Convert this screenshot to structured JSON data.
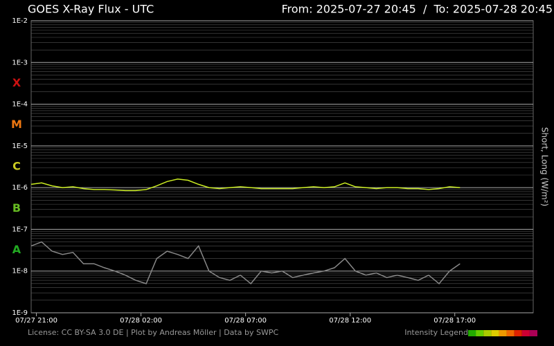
{
  "chart_data": {
    "type": "line",
    "title": "GOES X-Ray Flux - UTC",
    "subtitle": "From: 2025-07-27 20:45  /  To: 2025-07-28 20:45",
    "ylabel": "Short, Long (W/m²)",
    "log_y": true,
    "grid": true,
    "minor_grid": true,
    "ylim": [
      1e-09,
      0.01
    ],
    "yticks": [
      {
        "value": 1e-09,
        "label": "1E-9"
      },
      {
        "value": 1e-08,
        "label": "1E-8"
      },
      {
        "value": 1e-07,
        "label": "1E-7"
      },
      {
        "value": 1e-06,
        "label": "1E-6"
      },
      {
        "value": 1e-05,
        "label": "1E-5"
      },
      {
        "value": 0.0001,
        "label": "1E-4"
      },
      {
        "value": 0.001,
        "label": "1E-3"
      },
      {
        "value": 0.01,
        "label": "1E-2"
      }
    ],
    "xlim": [
      "2025-07-27T20:45",
      "2025-07-28T20:45"
    ],
    "xticks": [
      {
        "value": "2025-07-27T21:00",
        "label": "07/27 21:00"
      },
      {
        "value": "2025-07-28T02:00",
        "label": "07/28 02:00"
      },
      {
        "value": "2025-07-28T07:00",
        "label": "07/28 07:00"
      },
      {
        "value": "2025-07-28T12:00",
        "label": "07/28 12:00"
      },
      {
        "value": "2025-07-28T17:00",
        "label": "07/28 17:00"
      }
    ],
    "flare_classes": [
      {
        "label": "A",
        "color": "#22aa22"
      },
      {
        "label": "B",
        "color": "#66bb22"
      },
      {
        "label": "C",
        "color": "#cccc22"
      },
      {
        "label": "M",
        "color": "#ee7711"
      },
      {
        "label": "X",
        "color": "#cc1111"
      }
    ],
    "x": [
      "2025-07-27T20:45",
      "2025-07-27T21:15",
      "2025-07-27T21:45",
      "2025-07-27T22:15",
      "2025-07-27T22:45",
      "2025-07-27T23:15",
      "2025-07-27T23:45",
      "2025-07-28T00:15",
      "2025-07-28T00:45",
      "2025-07-28T01:15",
      "2025-07-28T01:45",
      "2025-07-28T02:15",
      "2025-07-28T02:45",
      "2025-07-28T03:15",
      "2025-07-28T03:45",
      "2025-07-28T04:15",
      "2025-07-28T04:45",
      "2025-07-28T05:15",
      "2025-07-28T05:45",
      "2025-07-28T06:15",
      "2025-07-28T06:45",
      "2025-07-28T07:15",
      "2025-07-28T07:45",
      "2025-07-28T08:15",
      "2025-07-28T08:45",
      "2025-07-28T09:15",
      "2025-07-28T09:45",
      "2025-07-28T10:15",
      "2025-07-28T10:45",
      "2025-07-28T11:15",
      "2025-07-28T11:45",
      "2025-07-28T12:15",
      "2025-07-28T12:45",
      "2025-07-28T13:15",
      "2025-07-28T13:45",
      "2025-07-28T14:15",
      "2025-07-28T14:45",
      "2025-07-28T15:15",
      "2025-07-28T15:45",
      "2025-07-28T16:15",
      "2025-07-28T16:45",
      "2025-07-28T17:15"
    ],
    "series": [
      {
        "name": "Long",
        "color": "#ccee22",
        "values": [
          1.2e-06,
          1.3e-06,
          1.1e-06,
          1e-06,
          1.05e-06,
          9.5e-07,
          9e-07,
          9e-07,
          8.8e-07,
          8.5e-07,
          8.5e-07,
          9e-07,
          1.1e-06,
          1.4e-06,
          1.6e-06,
          1.5e-06,
          1.2e-06,
          1e-06,
          9.5e-07,
          1e-06,
          1.05e-06,
          1e-06,
          9.5e-07,
          9.5e-07,
          9.5e-07,
          9.5e-07,
          1e-06,
          1.05e-06,
          1e-06,
          1.05e-06,
          1.3e-06,
          1.05e-06,
          1e-06,
          9.5e-07,
          1e-06,
          1e-06,
          9.5e-07,
          9.5e-07,
          9e-07,
          9.5e-07,
          1.05e-06,
          1e-06
        ]
      },
      {
        "name": "Short",
        "color": "#888888",
        "values": [
          4e-08,
          5e-08,
          3e-08,
          2.5e-08,
          2.8e-08,
          1.5e-08,
          1.5e-08,
          1.2e-08,
          1e-08,
          8e-09,
          6e-09,
          5e-09,
          2e-08,
          3e-08,
          2.5e-08,
          2e-08,
          4e-08,
          1e-08,
          7e-09,
          6e-09,
          8e-09,
          5e-09,
          1e-08,
          9e-09,
          1e-08,
          7e-09,
          8e-09,
          9e-09,
          1e-08,
          1.2e-08,
          2e-08,
          1e-08,
          8e-09,
          9e-09,
          7e-09,
          8e-09,
          7e-09,
          6e-09,
          8e-09,
          5e-09,
          1e-08,
          1.5e-08
        ]
      }
    ],
    "footer": "License: CC BY-SA 3.0 DE | Plot by Andreas Möller | Data by SWPC",
    "intensity_legend": {
      "label": "Intensity Legend",
      "colors": [
        "#22aa00",
        "#66cc00",
        "#aacc00",
        "#ddcc00",
        "#ee9900",
        "#ee6600",
        "#dd2200",
        "#cc0033",
        "#aa0055"
      ]
    }
  }
}
